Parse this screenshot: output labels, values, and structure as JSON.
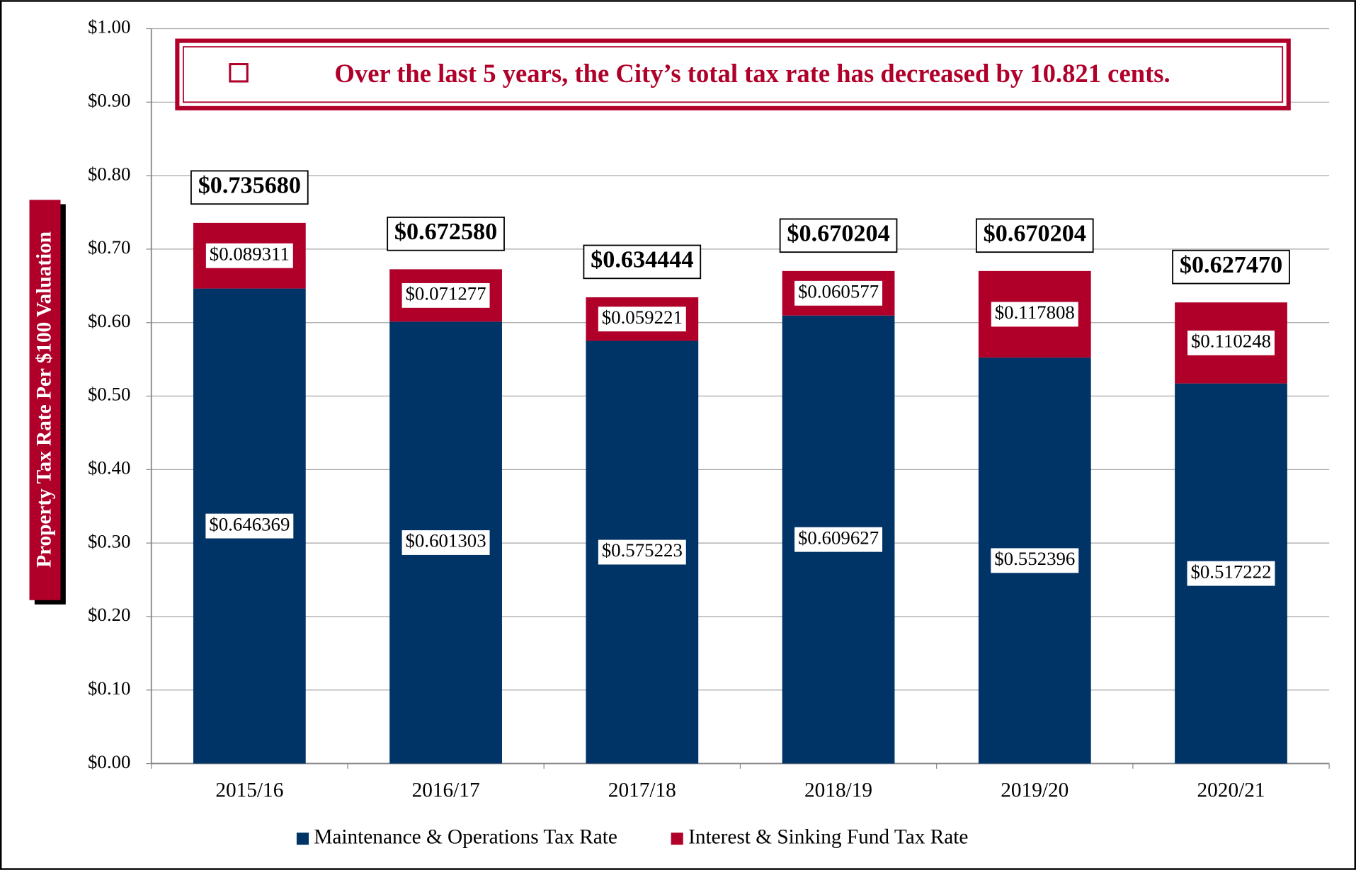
{
  "chart_data": {
    "type": "stacked_bar",
    "annotation": "Over the last 5 years, the City’s total tax rate has decreased by 10.821 cents.",
    "y_label": "Property Tax Rate Per $100 Valuation",
    "categories": [
      "2015/16",
      "2016/17",
      "2017/18",
      "2018/19",
      "2019/20",
      "2020/21"
    ],
    "series": [
      {
        "name": "Maintenance & Operations Tax Rate",
        "color": "#003366",
        "values": [
          0.646369,
          0.601303,
          0.575223,
          0.609627,
          0.552396,
          0.517222
        ],
        "value_labels": [
          "$0.646369",
          "$0.601303",
          "$0.575223",
          "$0.609627",
          "$0.552396",
          "$0.517222"
        ]
      },
      {
        "name": "Interest & Sinking Fund Tax Rate",
        "color": "#b0002a",
        "values": [
          0.089311,
          0.071277,
          0.059221,
          0.060577,
          0.117808,
          0.110248
        ],
        "value_labels": [
          "$0.089311",
          "$0.071277",
          "$0.059221",
          "$0.060577",
          "$0.117808",
          "$0.110248"
        ]
      }
    ],
    "total_labels": [
      "$0.735680",
      "$0.672580",
      "$0.634444",
      "$0.670204",
      "$0.670204",
      "$0.627470"
    ],
    "ylim": [
      0,
      1
    ],
    "yticks": [
      {
        "value": 0,
        "label": "$0.00"
      },
      {
        "value": 0.1,
        "label": "$0.10"
      },
      {
        "value": 0.2,
        "label": "$0.20"
      },
      {
        "value": 0.3,
        "label": "$0.30"
      },
      {
        "value": 0.4,
        "label": "$0.40"
      },
      {
        "value": 0.5,
        "label": "$0.50"
      },
      {
        "value": 0.6,
        "label": "$0.60"
      },
      {
        "value": 0.7,
        "label": "$0.70"
      },
      {
        "value": 0.8,
        "label": "$0.80"
      },
      {
        "value": 0.9,
        "label": "$0.90"
      },
      {
        "value": 1,
        "label": "$1.00"
      }
    ],
    "grid": true,
    "legend": "bottom"
  }
}
